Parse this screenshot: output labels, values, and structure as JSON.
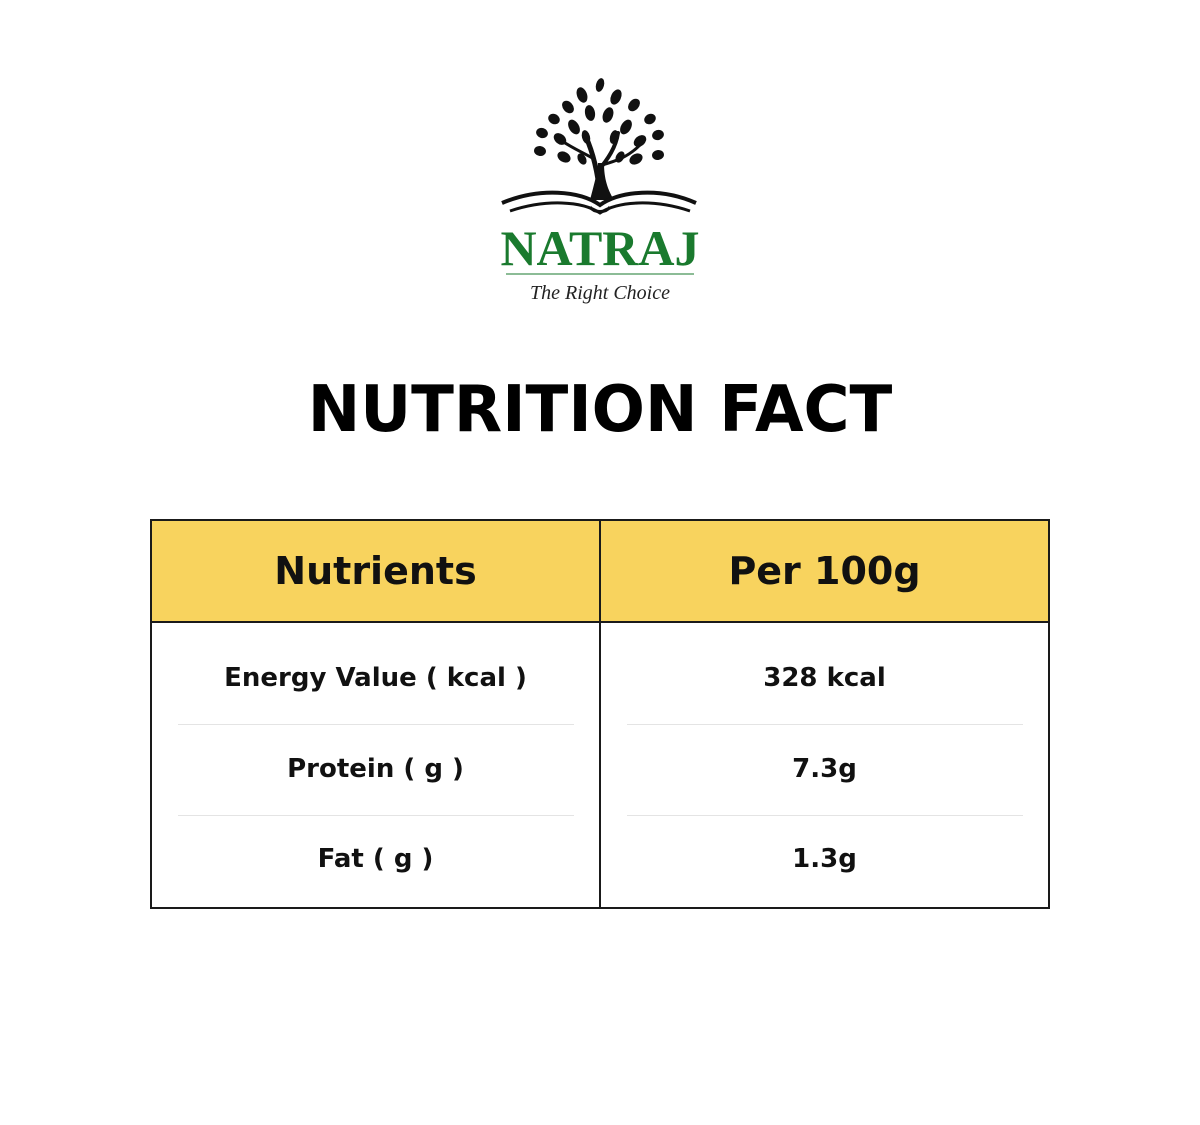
{
  "logo": {
    "brand": "NATRAJ",
    "tagline": "The Right Choice",
    "brand_color": "#1a7a2e",
    "icon": "tree-on-open-book-icon"
  },
  "title": "NUTRITION FACT",
  "table": {
    "header_color": "#f8d35e",
    "headers": [
      "Nutrients",
      "Per 100g"
    ],
    "rows": [
      [
        "Energy Value ( kcal )",
        "328 kcal"
      ],
      [
        "Protein ( g )",
        "7.3g"
      ],
      [
        "Fat ( g )",
        "1.3g"
      ]
    ]
  }
}
